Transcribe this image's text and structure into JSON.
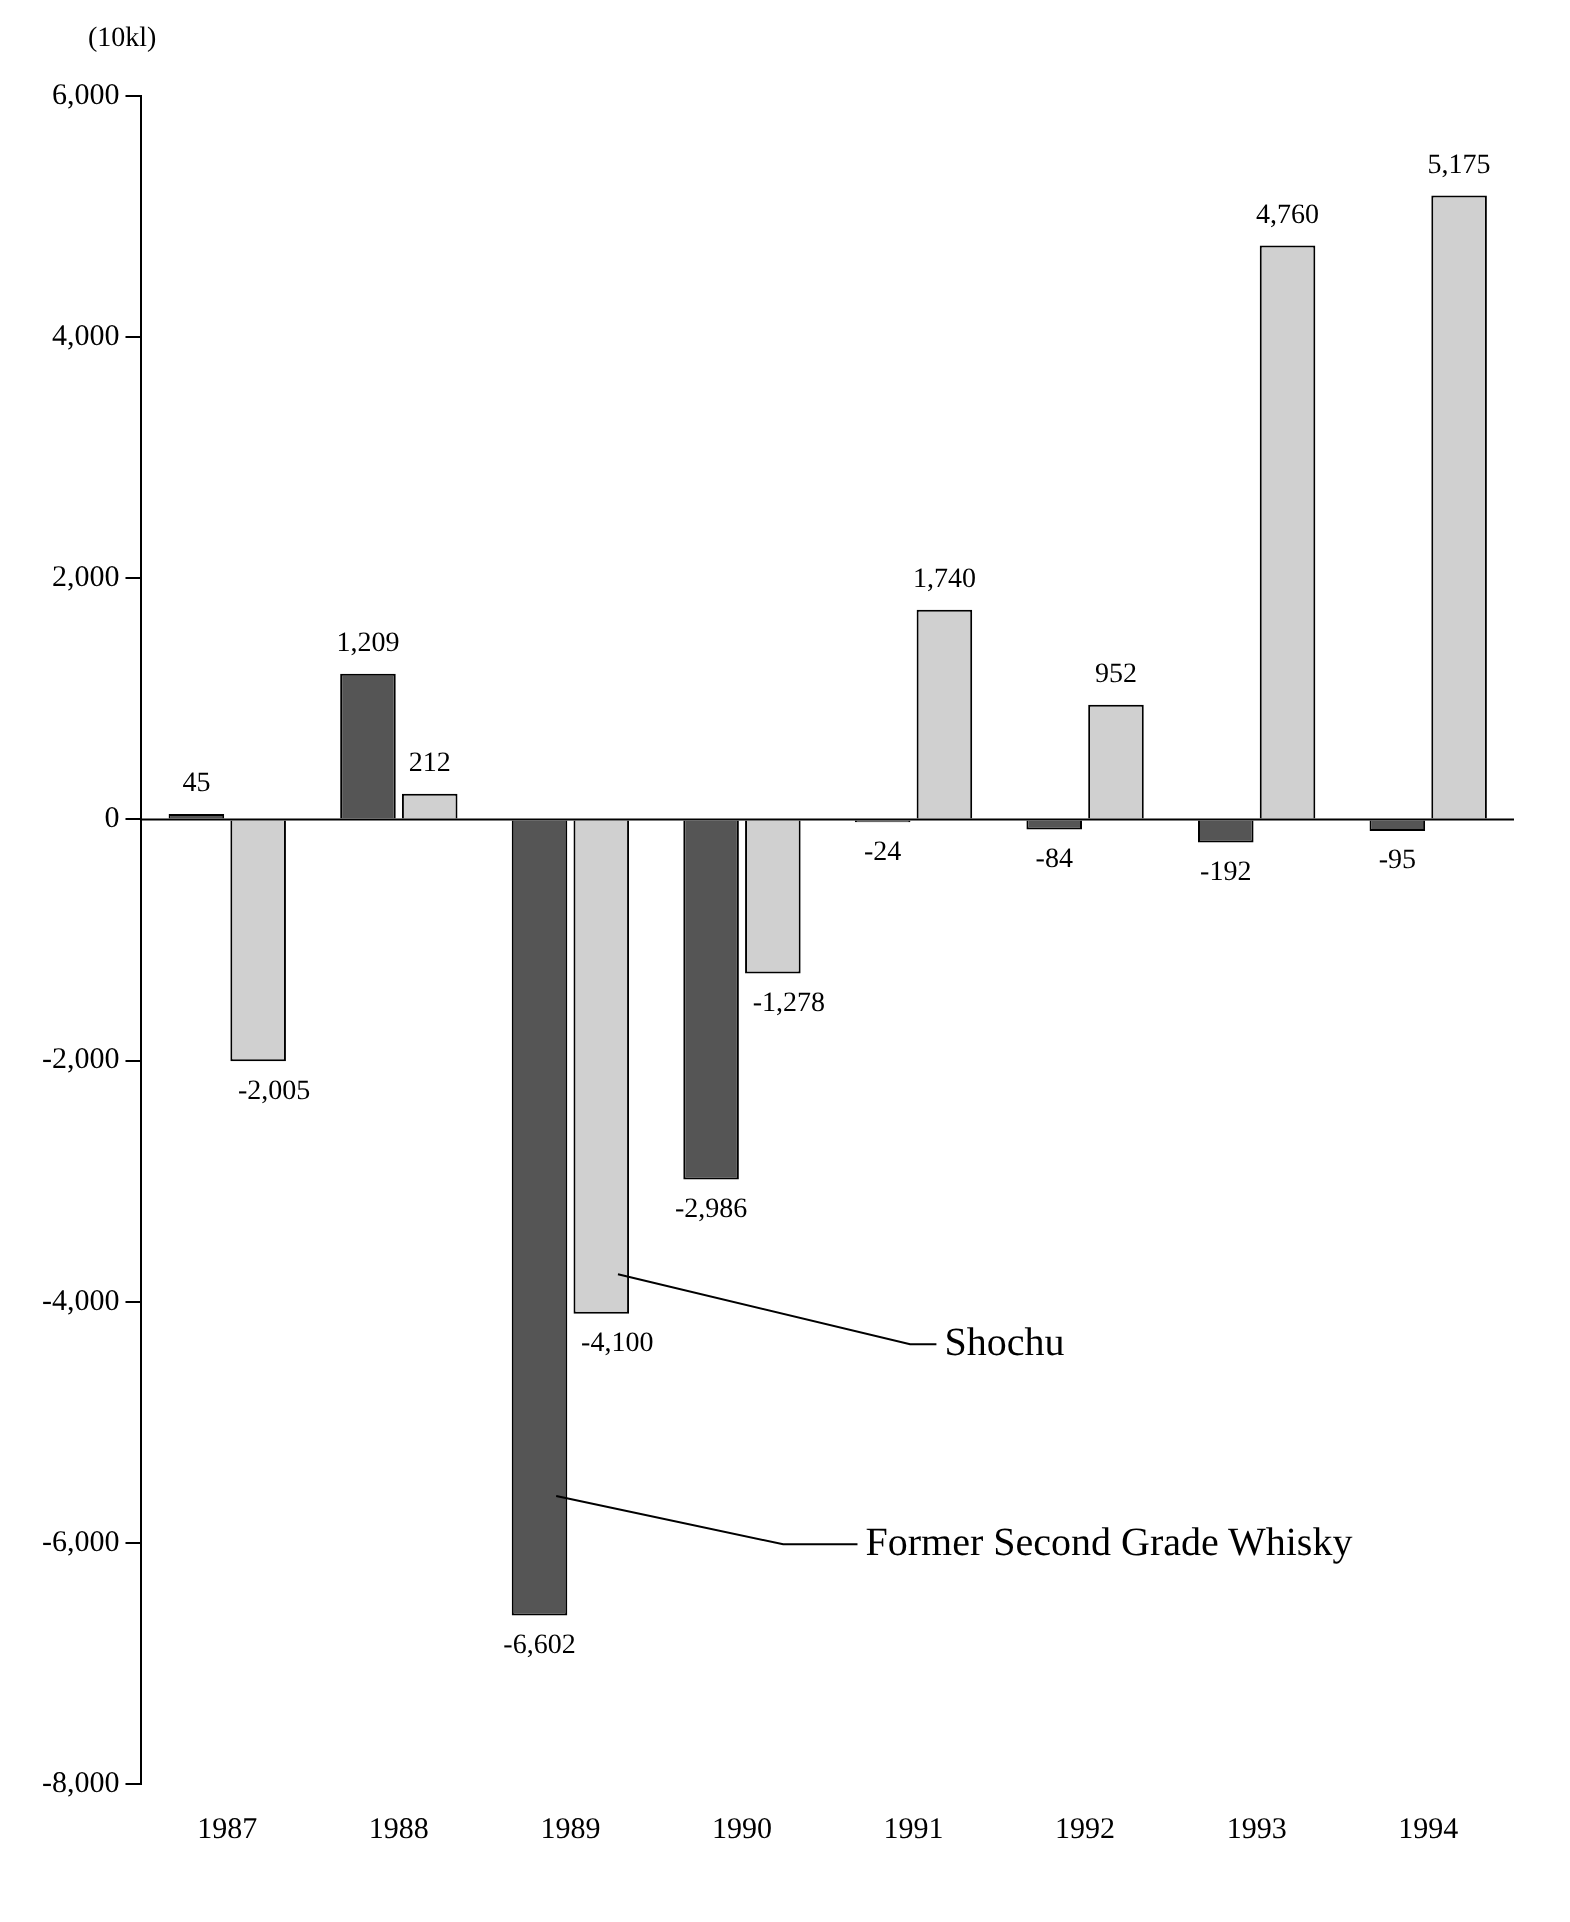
{
  "chart_data": {
    "type": "bar",
    "ylabel": "(10kl)",
    "categories": [
      "1987",
      "1988",
      "1989",
      "1990",
      "1991",
      "1992",
      "1993",
      "1994"
    ],
    "series": [
      {
        "name": "Former Second Grade Whisky",
        "color": "#555555",
        "values": [
          45,
          1209,
          -6602,
          -2986,
          -24,
          -84,
          -192,
          -95
        ],
        "value_labels": [
          "45",
          "1,209",
          "-6,602",
          "-2,986",
          "-24",
          "-84",
          "-192",
          "-95"
        ]
      },
      {
        "name": "Shochu",
        "color": "#d0d0d0",
        "values": [
          -2005,
          212,
          -4100,
          -1278,
          1740,
          952,
          4760,
          5175
        ],
        "value_labels": [
          "-2,005",
          "212",
          "-4,100",
          "-1,278",
          "1,740",
          "952",
          "4,760",
          "5,175"
        ]
      }
    ],
    "ylim": [
      -8000,
      6000
    ],
    "yticks": [
      {
        "value": -8000,
        "label": "-8,000"
      },
      {
        "value": -6000,
        "label": "-6,000"
      },
      {
        "value": -4000,
        "label": "-4,000"
      },
      {
        "value": -2000,
        "label": "-2,000"
      },
      0,
      {
        "value": 2000,
        "label": "2,000"
      },
      {
        "value": 4000,
        "label": "4,000"
      },
      {
        "value": 6000,
        "label": "6,000"
      }
    ],
    "ref_lines": [
      {
        "axis": "y",
        "value": 0
      }
    ],
    "grid": false,
    "legend": false
  }
}
